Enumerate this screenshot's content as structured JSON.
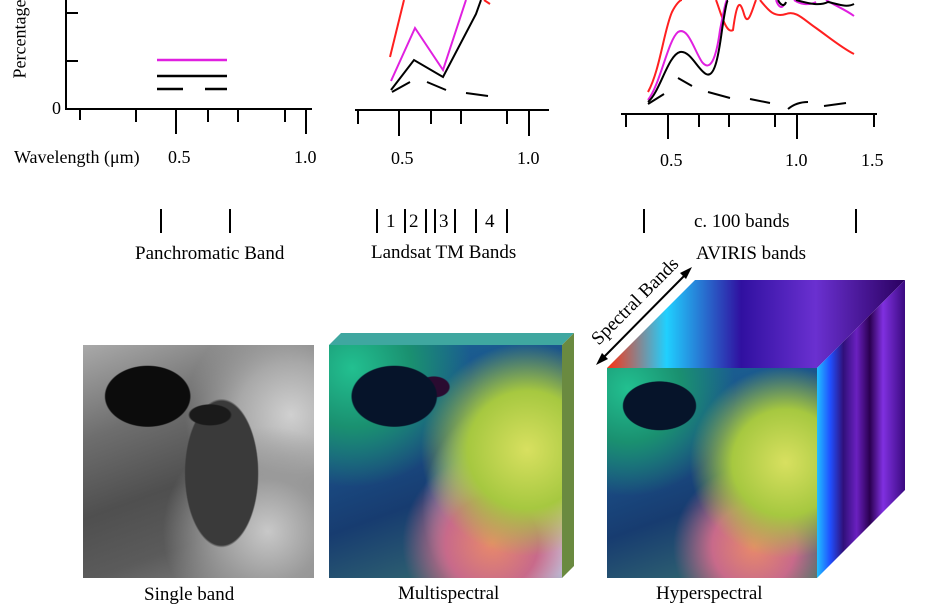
{
  "spectra": {
    "panchromatic": {
      "y_axis_label": "Percentage",
      "y_zero": "0",
      "x_label": "Wavelength (μm)",
      "x_ticks": [
        "0.5",
        "1.0"
      ]
    },
    "landsat": {
      "x_ticks": [
        "0.5",
        "1.0"
      ]
    },
    "aviris": {
      "x_ticks": [
        "0.5",
        "1.0",
        "1.5"
      ]
    },
    "colors": {
      "red": "#ff2020",
      "magenta": "#e020e0",
      "black": "#000000"
    }
  },
  "bands": {
    "panchromatic_label": "Panchromatic Band",
    "landsat_numbers": [
      "1",
      "2",
      "3",
      "4"
    ],
    "landsat_label": "Landsat TM Bands",
    "aviris_count": "c. 100 bands",
    "aviris_label": "AVIRIS bands"
  },
  "images": {
    "single": "Single band",
    "multi": "Multispectral",
    "hyper": "Hyperspectral",
    "spectral_axis": "Spectral Bands"
  }
}
